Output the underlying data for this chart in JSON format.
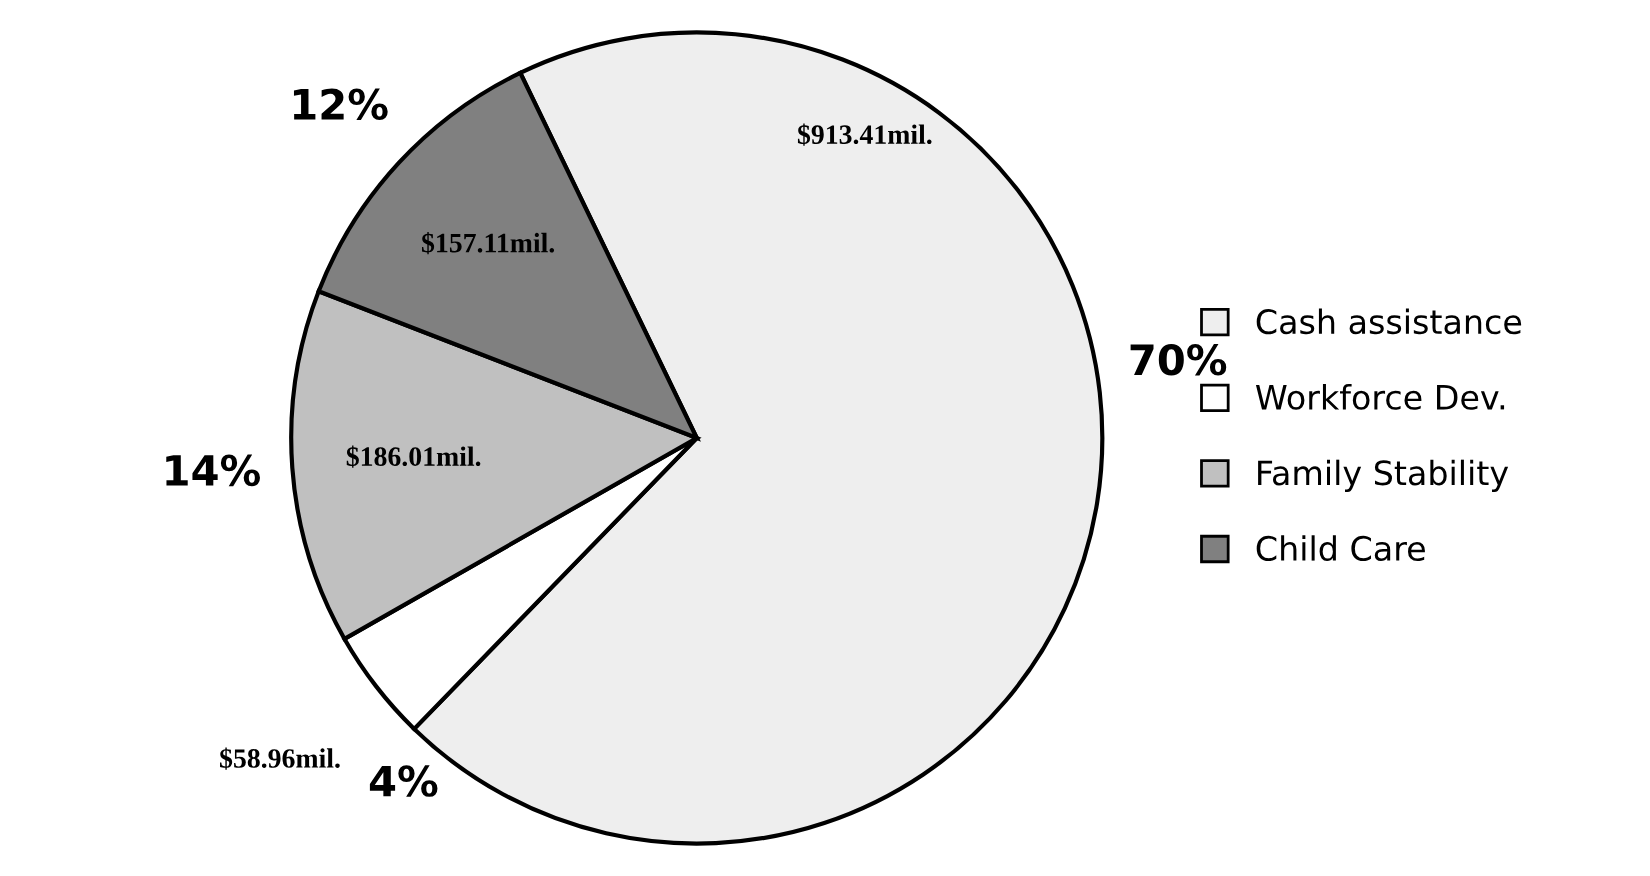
{
  "chart_data": {
    "type": "pie",
    "categories": [
      "Cash assistance",
      "Workforce Dev.",
      "Family Stability",
      "Child Care"
    ],
    "values": [
      913.41,
      58.96,
      186.01,
      157.11
    ],
    "value_labels": [
      "$913.41mil.",
      "$58.96mil.",
      "$186.01mil.",
      "$157.11mil."
    ],
    "colors": [
      "#eeeeee",
      "#ffffff",
      "#c0c0c0",
      "#808080"
    ],
    "annotations": [
      {
        "text": "70%",
        "x": "Cash assistance"
      },
      {
        "text": "4%",
        "x": "Workforce Dev."
      },
      {
        "text": "14%",
        "x": "Family Stability"
      },
      {
        "text": "12%",
        "x": "Child Care"
      }
    ],
    "legend": "right"
  }
}
